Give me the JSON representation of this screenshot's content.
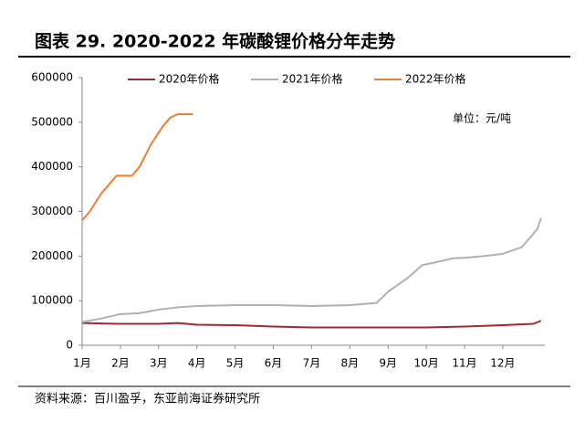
{
  "chart_data": {
    "type": "line",
    "title": "图表 29. 2020-2022 年碳酸锂价格分年走势",
    "annotation": "单位：元/吨",
    "source": "资料来源：百川盈孚，东亚前海证券研究所",
    "xlim": [
      1,
      13.1
    ],
    "xticks": [
      {
        "value": 1,
        "label": "1月"
      },
      {
        "value": 2,
        "label": "2月"
      },
      {
        "value": 3,
        "label": "3月"
      },
      {
        "value": 4,
        "label": "4月"
      },
      {
        "value": 5,
        "label": "5月"
      },
      {
        "value": 6,
        "label": "6月"
      },
      {
        "value": 7,
        "label": "7月"
      },
      {
        "value": 8,
        "label": "8月"
      },
      {
        "value": 9,
        "label": "9月"
      },
      {
        "value": 10,
        "label": "10月"
      },
      {
        "value": 11,
        "label": "11月"
      },
      {
        "value": 12,
        "label": "12月"
      }
    ],
    "ylim": [
      0,
      600000
    ],
    "yticks": [
      0,
      100000,
      200000,
      300000,
      400000,
      500000,
      600000
    ],
    "grid": false,
    "legend": "top",
    "series": [
      {
        "name": "2020年价格",
        "color": "#9b2d30",
        "x": [
          1,
          2,
          3,
          3.5,
          4,
          5,
          6,
          7,
          8,
          9,
          10,
          11,
          12,
          12.8,
          13
        ],
        "values": [
          50000,
          48000,
          48000,
          50000,
          46000,
          45000,
          42000,
          40000,
          40000,
          40000,
          40000,
          42000,
          45000,
          48000,
          55000
        ]
      },
      {
        "name": "2021年价格",
        "color": "#b0b0b0",
        "x": [
          1,
          1.5,
          2,
          2.5,
          3,
          3.5,
          4,
          5,
          6,
          7,
          8,
          8.7,
          9,
          9.5,
          9.9,
          10.2,
          10.7,
          11,
          11.5,
          12,
          12.5,
          12.9,
          13
        ],
        "values": [
          52000,
          60000,
          70000,
          72000,
          80000,
          85000,
          88000,
          90000,
          90000,
          88000,
          90000,
          95000,
          120000,
          150000,
          180000,
          185000,
          195000,
          196000,
          200000,
          205000,
          220000,
          260000,
          285000
        ]
      },
      {
        "name": "2022年价格",
        "color": "#ed7d31",
        "x": [
          1,
          1.2,
          1.5,
          1.7,
          1.9,
          2.3,
          2.4,
          2.5,
          2.8,
          3.1,
          3.3,
          3.5,
          3.9
        ],
        "values": [
          280000,
          300000,
          340000,
          360000,
          380000,
          380000,
          390000,
          400000,
          450000,
          490000,
          510000,
          518000,
          518000
        ]
      }
    ]
  }
}
